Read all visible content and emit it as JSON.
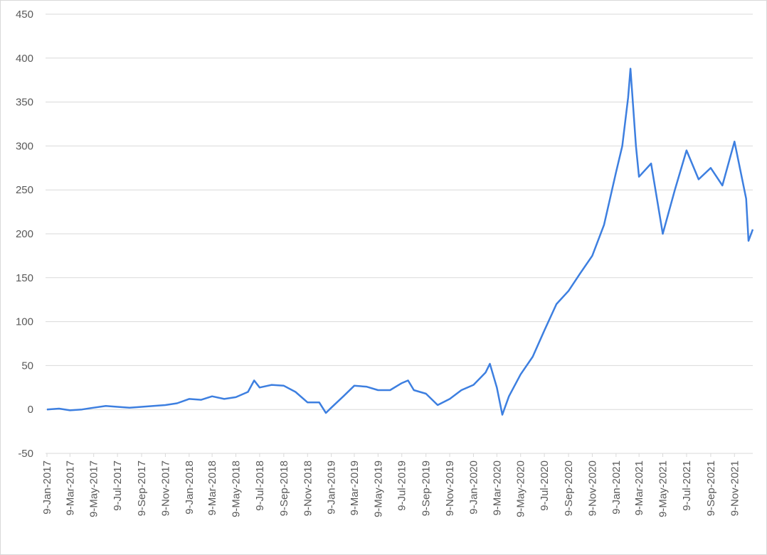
{
  "chart_data": {
    "type": "line",
    "color": "#3d7fe0",
    "grid": true,
    "x": [
      "2017-01-09",
      "2017-02-09",
      "2017-03-09",
      "2017-04-09",
      "2017-05-09",
      "2017-06-09",
      "2017-07-09",
      "2017-08-09",
      "2017-09-09",
      "2017-10-09",
      "2017-11-09",
      "2017-12-09",
      "2018-01-09",
      "2018-02-09",
      "2018-03-09",
      "2018-04-09",
      "2018-05-09",
      "2018-06-09",
      "2018-06-25",
      "2018-07-09",
      "2018-08-09",
      "2018-09-09",
      "2018-10-09",
      "2018-11-09",
      "2018-12-09",
      "2018-12-26",
      "2019-01-09",
      "2019-02-09",
      "2019-03-09",
      "2019-04-09",
      "2019-05-09",
      "2019-06-09",
      "2019-07-09",
      "2019-07-25",
      "2019-08-09",
      "2019-09-09",
      "2019-10-09",
      "2019-11-09",
      "2019-12-09",
      "2020-01-09",
      "2020-02-09",
      "2020-02-20",
      "2020-03-09",
      "2020-03-23",
      "2020-04-09",
      "2020-05-09",
      "2020-06-09",
      "2020-07-09",
      "2020-08-09",
      "2020-09-09",
      "2020-10-09",
      "2020-11-09",
      "2020-12-09",
      "2021-01-09",
      "2021-01-25",
      "2021-02-09",
      "2021-02-15",
      "2021-03-01",
      "2021-03-09",
      "2021-04-09",
      "2021-05-09",
      "2021-06-09",
      "2021-07-09",
      "2021-08-09",
      "2021-09-09",
      "2021-10-09",
      "2021-11-09",
      "2021-12-09",
      "2021-12-15",
      "2021-12-26"
    ],
    "values": [
      0,
      1,
      -1,
      0,
      2,
      4,
      3,
      2,
      3,
      4,
      5,
      7,
      12,
      11,
      15,
      12,
      14,
      20,
      33,
      25,
      28,
      27,
      20,
      8,
      8,
      -4,
      2,
      15,
      27,
      26,
      22,
      22,
      30,
      33,
      22,
      18,
      5,
      12,
      22,
      28,
      42,
      52,
      25,
      -6,
      15,
      40,
      60,
      90,
      120,
      135,
      155,
      175,
      210,
      270,
      300,
      355,
      388,
      300,
      265,
      280,
      200,
      250,
      295,
      262,
      275,
      255,
      305,
      240,
      192,
      205
    ],
    "xlim": [
      "2017-01-09",
      "2021-12-26"
    ],
    "xticks": [
      {
        "value": "2017-01-09",
        "label": "9-Jan-2017"
      },
      {
        "value": "2017-03-09",
        "label": "9-Mar-2017"
      },
      {
        "value": "2017-05-09",
        "label": "9-May-2017"
      },
      {
        "value": "2017-07-09",
        "label": "9-Jul-2017"
      },
      {
        "value": "2017-09-09",
        "label": "9-Sep-2017"
      },
      {
        "value": "2017-11-09",
        "label": "9-Nov-2017"
      },
      {
        "value": "2018-01-09",
        "label": "9-Jan-2018"
      },
      {
        "value": "2018-03-09",
        "label": "9-Mar-2018"
      },
      {
        "value": "2018-05-09",
        "label": "9-May-2018"
      },
      {
        "value": "2018-07-09",
        "label": "9-Jul-2018"
      },
      {
        "value": "2018-09-09",
        "label": "9-Sep-2018"
      },
      {
        "value": "2018-11-09",
        "label": "9-Nov-2018"
      },
      {
        "value": "2019-01-09",
        "label": "9-Jan-2019"
      },
      {
        "value": "2019-03-09",
        "label": "9-Mar-2019"
      },
      {
        "value": "2019-05-09",
        "label": "9-May-2019"
      },
      {
        "value": "2019-07-09",
        "label": "9-Jul-2019"
      },
      {
        "value": "2019-09-09",
        "label": "9-Sep-2019"
      },
      {
        "value": "2019-11-09",
        "label": "9-Nov-2019"
      },
      {
        "value": "2020-01-09",
        "label": "9-Jan-2020"
      },
      {
        "value": "2020-03-09",
        "label": "9-Mar-2020"
      },
      {
        "value": "2020-05-09",
        "label": "9-May-2020"
      },
      {
        "value": "2020-07-09",
        "label": "9-Jul-2020"
      },
      {
        "value": "2020-09-09",
        "label": "9-Sep-2020"
      },
      {
        "value": "2020-11-09",
        "label": "9-Nov-2020"
      },
      {
        "value": "2021-01-09",
        "label": "9-Jan-2021"
      },
      {
        "value": "2021-03-09",
        "label": "9-Mar-2021"
      },
      {
        "value": "2021-05-09",
        "label": "9-May-2021"
      },
      {
        "value": "2021-07-09",
        "label": "9-Jul-2021"
      },
      {
        "value": "2021-09-09",
        "label": "9-Sep-2021"
      },
      {
        "value": "2021-11-09",
        "label": "9-Nov-2021"
      }
    ],
    "ylim": [
      -50,
      450
    ],
    "yticks": [
      -50,
      0,
      50,
      100,
      150,
      200,
      250,
      300,
      350,
      400,
      450
    ]
  }
}
